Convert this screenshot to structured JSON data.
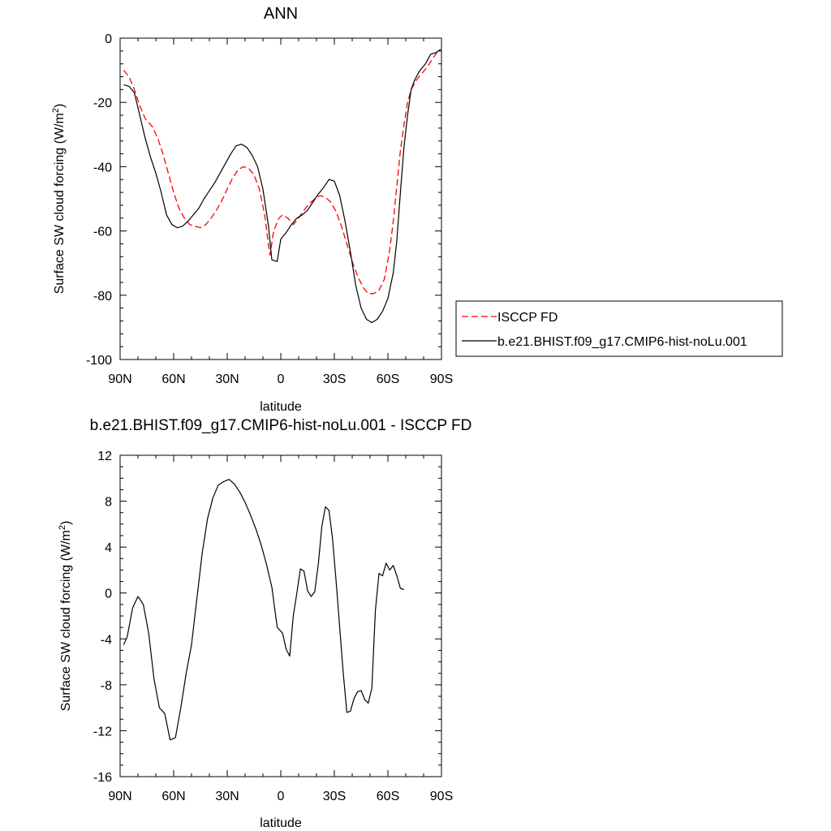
{
  "chart_data": [
    {
      "type": "line",
      "title": "ANN",
      "xlabel": "latitude",
      "ylabel": "Surface SW cloud forcing (W/m",
      "ylabel_sup": "2",
      "ylabel_end": ")",
      "xlim": [
        90,
        -90
      ],
      "ylim": [
        -100,
        0
      ],
      "xticks": [
        90,
        60,
        30,
        0,
        -30,
        -60,
        -90
      ],
      "xtick_labels": [
        "90N",
        "60N",
        "30N",
        "0",
        "30S",
        "60S",
        "90S"
      ],
      "yticks": [
        0,
        -20,
        -40,
        -60,
        -80,
        -100
      ],
      "ytick_labels": [
        "0",
        "-20",
        "-40",
        "-60",
        "-80",
        "-100"
      ],
      "legend": "right",
      "series": [
        {
          "name": "ISCCP FD",
          "color": "#ff0000",
          "dash": true,
          "points": [
            [
              88,
              -10
            ],
            [
              85,
              -12
            ],
            [
              82,
              -16
            ],
            [
              79,
              -21
            ],
            [
              76,
              -25
            ],
            [
              72,
              -27.5
            ],
            [
              69,
              -31
            ],
            [
              66,
              -36
            ],
            [
              63,
              -42
            ],
            [
              60,
              -48
            ],
            [
              57,
              -53
            ],
            [
              54,
              -56
            ],
            [
              51,
              -58
            ],
            [
              48,
              -58.5
            ],
            [
              45,
              -59
            ],
            [
              42,
              -58
            ],
            [
              39,
              -56
            ],
            [
              36,
              -53.5
            ],
            [
              33,
              -50.5
            ],
            [
              30,
              -47
            ],
            [
              27,
              -43.5
            ],
            [
              24,
              -41
            ],
            [
              21,
              -40
            ],
            [
              18,
              -40.5
            ],
            [
              15,
              -42.5
            ],
            [
              12,
              -47
            ],
            [
              9,
              -55
            ],
            [
              7,
              -64
            ],
            [
              6,
              -67.5
            ],
            [
              4,
              -60
            ],
            [
              1,
              -56
            ],
            [
              -1,
              -55
            ],
            [
              -4,
              -56
            ],
            [
              -7,
              -58
            ],
            [
              -10,
              -56
            ],
            [
              -13,
              -53.5
            ],
            [
              -16,
              -51.5
            ],
            [
              -19,
              -50
            ],
            [
              -22,
              -49
            ],
            [
              -25,
              -49.5
            ],
            [
              -28,
              -51
            ],
            [
              -31,
              -54
            ],
            [
              -34,
              -58.5
            ],
            [
              -37,
              -64
            ],
            [
              -40,
              -69.5
            ],
            [
              -43,
              -74
            ],
            [
              -46,
              -77.5
            ],
            [
              -49,
              -79.5
            ],
            [
              -52,
              -79.5
            ],
            [
              -55,
              -78.5
            ],
            [
              -58,
              -75
            ],
            [
              -61,
              -66
            ],
            [
              -63,
              -57
            ],
            [
              -65,
              -46
            ],
            [
              -67,
              -35
            ],
            [
              -69,
              -27
            ],
            [
              -71,
              -20
            ],
            [
              -73,
              -16
            ],
            [
              -76,
              -13
            ],
            [
              -79,
              -11
            ],
            [
              -82,
              -9
            ],
            [
              -85,
              -6.5
            ],
            [
              -88,
              -4
            ],
            [
              -89.5,
              -3.5
            ]
          ]
        },
        {
          "name": "b.e21.BHIST.f09_g17.CMIP6-hist-noLu.001",
          "color": "#000000",
          "dash": false,
          "points": [
            [
              88,
              -14.5
            ],
            [
              85,
              -15
            ],
            [
              82,
              -17
            ],
            [
              79,
              -24
            ],
            [
              76,
              -31
            ],
            [
              73,
              -37
            ],
            [
              70,
              -42
            ],
            [
              67,
              -48
            ],
            [
              64,
              -55
            ],
            [
              61,
              -58
            ],
            [
              58,
              -59
            ],
            [
              55,
              -58.5
            ],
            [
              52,
              -57
            ],
            [
              49,
              -55
            ],
            [
              46,
              -53
            ],
            [
              43,
              -50
            ],
            [
              40,
              -47.5
            ],
            [
              37,
              -45
            ],
            [
              34,
              -42
            ],
            [
              31,
              -39
            ],
            [
              28,
              -36
            ],
            [
              25,
              -33.5
            ],
            [
              22,
              -33
            ],
            [
              19,
              -34
            ],
            [
              16,
              -36.5
            ],
            [
              13,
              -40
            ],
            [
              10,
              -47
            ],
            [
              7,
              -58
            ],
            [
              5,
              -69
            ],
            [
              2,
              -69.5
            ],
            [
              0,
              -62.5
            ],
            [
              -3,
              -60.5
            ],
            [
              -6,
              -58
            ],
            [
              -9,
              -56
            ],
            [
              -12,
              -55
            ],
            [
              -15,
              -53.5
            ],
            [
              -18,
              -51
            ],
            [
              -21,
              -48.5
            ],
            [
              -24,
              -46.5
            ],
            [
              -27,
              -44
            ],
            [
              -30,
              -44.5
            ],
            [
              -33,
              -49
            ],
            [
              -36,
              -57
            ],
            [
              -39,
              -66.5
            ],
            [
              -42,
              -77
            ],
            [
              -45,
              -84
            ],
            [
              -48,
              -87.5
            ],
            [
              -51,
              -88.5
            ],
            [
              -54,
              -87.5
            ],
            [
              -57,
              -85
            ],
            [
              -60,
              -81
            ],
            [
              -63,
              -73
            ],
            [
              -65,
              -63
            ],
            [
              -67,
              -48
            ],
            [
              -69,
              -34
            ],
            [
              -71,
              -24
            ],
            [
              -73,
              -16
            ],
            [
              -75,
              -13
            ],
            [
              -78,
              -10
            ],
            [
              -81,
              -8
            ],
            [
              -84,
              -5
            ],
            [
              -87,
              -4.5
            ],
            [
              -89.5,
              -3.5
            ]
          ]
        }
      ]
    },
    {
      "type": "line",
      "title": "b.e21.BHIST.f09_g17.CMIP6-hist-noLu.001 - ISCCP FD",
      "xlabel": "latitude",
      "ylabel": "Surface SW cloud forcing (W/m",
      "ylabel_sup": "2",
      "ylabel_end": ")",
      "xlim": [
        90,
        -90
      ],
      "ylim": [
        -16,
        12
      ],
      "xticks": [
        90,
        60,
        30,
        0,
        -30,
        -60,
        -90
      ],
      "xtick_labels": [
        "90N",
        "60N",
        "30N",
        "0",
        "30S",
        "60S",
        "90S"
      ],
      "yticks": [
        12,
        8,
        4,
        0,
        -4,
        -8,
        -12,
        -16
      ],
      "ytick_labels": [
        "12",
        "8",
        "4",
        "0",
        "-4",
        "-8",
        "-12",
        "-16"
      ],
      "series": [
        {
          "color": "#000000",
          "dash": false,
          "points": [
            [
              88,
              -4.5
            ],
            [
              86,
              -3.8
            ],
            [
              83,
              -1.3
            ],
            [
              80,
              -0.3
            ],
            [
              77,
              -1
            ],
            [
              74,
              -3.5
            ],
            [
              71,
              -7.5
            ],
            [
              68,
              -10
            ],
            [
              65,
              -10.5
            ],
            [
              62,
              -12.8
            ],
            [
              59,
              -12.6
            ],
            [
              56,
              -10
            ],
            [
              53,
              -7
            ],
            [
              50,
              -4.5
            ],
            [
              47,
              -0.5
            ],
            [
              44,
              3.5
            ],
            [
              41,
              6.5
            ],
            [
              38,
              8.3
            ],
            [
              35,
              9.4
            ],
            [
              32,
              9.7
            ],
            [
              29,
              9.9
            ],
            [
              26,
              9.5
            ],
            [
              23,
              8.8
            ],
            [
              20,
              7.9
            ],
            [
              17,
              6.8
            ],
            [
              14,
              5.6
            ],
            [
              11,
              4.2
            ],
            [
              8,
              2.5
            ],
            [
              5,
              0.5
            ],
            [
              2,
              -3
            ],
            [
              -1,
              -3.5
            ],
            [
              -3,
              -4.9
            ],
            [
              -5,
              -5.5
            ],
            [
              -7,
              -2
            ],
            [
              -9,
              0
            ],
            [
              -11,
              2.1
            ],
            [
              -13,
              1.9
            ],
            [
              -15,
              0.2
            ],
            [
              -17,
              -0.3
            ],
            [
              -19,
              0.1
            ],
            [
              -21,
              2.5
            ],
            [
              -23,
              5.8
            ],
            [
              -25,
              7.5
            ],
            [
              -27,
              7.2
            ],
            [
              -29,
              4.7
            ],
            [
              -31,
              1
            ],
            [
              -33,
              -3
            ],
            [
              -35,
              -7
            ],
            [
              -37,
              -10.4
            ],
            [
              -39,
              -10.3
            ],
            [
              -41,
              -9.2
            ],
            [
              -43,
              -8.6
            ],
            [
              -45,
              -8.5
            ],
            [
              -47,
              -9.3
            ],
            [
              -49,
              -9.6
            ],
            [
              -51,
              -8.3
            ],
            [
              -53,
              -1.5
            ],
            [
              -55,
              1.7
            ],
            [
              -57,
              1.5
            ],
            [
              -59,
              2.6
            ],
            [
              -61,
              2
            ],
            [
              -63,
              2.4
            ],
            [
              -65,
              1.5
            ],
            [
              -67,
              0.4
            ],
            [
              -69,
              0.3
            ]
          ]
        }
      ]
    }
  ]
}
